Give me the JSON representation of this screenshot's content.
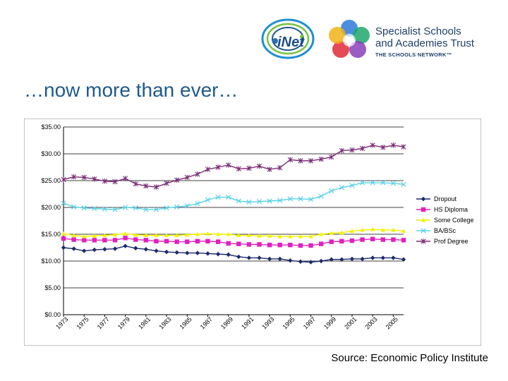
{
  "header": {
    "logo_inet": "iNet",
    "ssat_line1": "Specialist Schools",
    "ssat_line2": "and Academies Trust",
    "ssat_sub": "THE SCHOOLS NETWORK™"
  },
  "slide": {
    "title": "…now more than ever…",
    "source": "Source: Economic Policy Institute"
  },
  "chart_data": {
    "type": "line",
    "title": "",
    "xlabel": "",
    "ylabel": "",
    "ylim": [
      0,
      35
    ],
    "y_ticks": [
      "$0.00",
      "$5.00",
      "$10.00",
      "$15.00",
      "$20.00",
      "$25.00",
      "$30.00",
      "$35.00"
    ],
    "x_tick_labels": [
      "1973",
      "1975",
      "1977",
      "1979",
      "1981",
      "1983",
      "1985",
      "1987",
      "1989",
      "1991",
      "1993",
      "1995",
      "1997",
      "1999",
      "2001",
      "2003",
      "2005"
    ],
    "grid": "horizontal",
    "legend": "right",
    "x": [
      1973,
      1974,
      1975,
      1976,
      1977,
      1978,
      1979,
      1980,
      1981,
      1982,
      1983,
      1984,
      1985,
      1986,
      1987,
      1988,
      1989,
      1990,
      1991,
      1992,
      1993,
      1994,
      1995,
      1996,
      1997,
      1998,
      1999,
      2000,
      2001,
      2002,
      2003,
      2004,
      2005,
      2006
    ],
    "series": [
      {
        "name": "Dropout",
        "color": "#1b2a6b",
        "marker": "diamond",
        "values": [
          12.5,
          12.3,
          11.9,
          12.1,
          12.2,
          12.3,
          12.8,
          12.4,
          12.2,
          11.9,
          11.7,
          11.6,
          11.5,
          11.5,
          11.4,
          11.3,
          11.2,
          10.8,
          10.6,
          10.6,
          10.4,
          10.4,
          10.1,
          9.9,
          9.8,
          10.0,
          10.3,
          10.3,
          10.4,
          10.4,
          10.6,
          10.6,
          10.6,
          10.3
        ]
      },
      {
        "name": "HS Diploma",
        "color": "#e020c0",
        "marker": "square",
        "values": [
          14.2,
          14.0,
          13.9,
          13.9,
          13.9,
          13.9,
          14.3,
          14.0,
          13.9,
          13.7,
          13.7,
          13.6,
          13.6,
          13.7,
          13.7,
          13.6,
          13.3,
          13.2,
          13.1,
          13.1,
          13.0,
          13.0,
          13.0,
          12.9,
          12.9,
          13.2,
          13.6,
          13.7,
          13.8,
          14.0,
          14.1,
          14.0,
          14.0,
          13.9
        ]
      },
      {
        "name": "Some College",
        "color": "#f2f200",
        "marker": "triangle",
        "values": [
          15.1,
          14.8,
          14.6,
          14.7,
          14.8,
          14.9,
          15.1,
          14.9,
          14.8,
          14.8,
          14.8,
          14.8,
          14.9,
          15.0,
          15.1,
          15.0,
          15.0,
          14.8,
          14.8,
          14.7,
          14.7,
          14.6,
          14.6,
          14.6,
          14.6,
          15.0,
          15.2,
          15.3,
          15.6,
          15.8,
          15.9,
          15.8,
          15.8,
          15.6
        ]
      },
      {
        "name": "BA/BSc",
        "color": "#5ad2e6",
        "marker": "x",
        "values": [
          20.8,
          20.1,
          19.9,
          19.8,
          19.7,
          19.6,
          20.0,
          19.9,
          19.6,
          19.6,
          19.9,
          20.1,
          20.3,
          20.7,
          21.4,
          21.9,
          21.9,
          21.2,
          21.0,
          21.1,
          21.2,
          21.3,
          21.6,
          21.6,
          21.5,
          22.1,
          23.1,
          23.7,
          24.1,
          24.6,
          24.6,
          24.6,
          24.5,
          24.3
        ]
      },
      {
        "name": "Prof Degree",
        "color": "#7a2b74",
        "marker": "star",
        "values": [
          25.2,
          25.7,
          25.6,
          25.3,
          24.9,
          24.8,
          25.4,
          24.4,
          24.0,
          23.8,
          24.5,
          25.1,
          25.6,
          26.2,
          27.1,
          27.5,
          27.9,
          27.2,
          27.3,
          27.7,
          27.1,
          27.4,
          28.9,
          28.7,
          28.7,
          29.0,
          29.4,
          30.6,
          30.7,
          31.0,
          31.6,
          31.2,
          31.6,
          31.3
        ]
      }
    ]
  }
}
